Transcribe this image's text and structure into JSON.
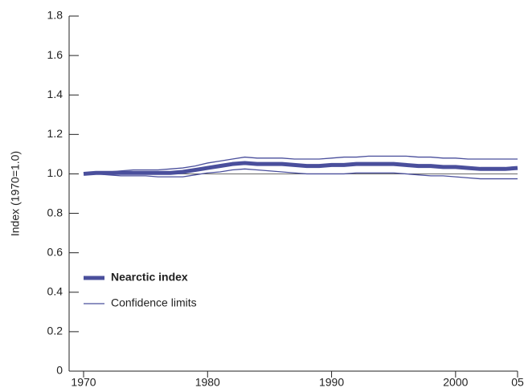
{
  "chart_data": {
    "type": "line",
    "y_label": "Index (1970=1.0)",
    "x": [
      1970,
      1971,
      1972,
      1973,
      1974,
      1975,
      1976,
      1977,
      1978,
      1979,
      1980,
      1981,
      1982,
      1983,
      1984,
      1985,
      1986,
      1987,
      1988,
      1989,
      1990,
      1991,
      1992,
      1993,
      1994,
      1995,
      1996,
      1997,
      1998,
      1999,
      2000,
      2001,
      2002,
      2003,
      2004,
      2005
    ],
    "series": [
      {
        "name": "Nearctic index",
        "color": "#4a4f9c",
        "values": [
          1.0,
          1.005,
          1.005,
          1.005,
          1.005,
          1.005,
          1.005,
          1.005,
          1.01,
          1.02,
          1.03,
          1.04,
          1.05,
          1.055,
          1.05,
          1.05,
          1.05,
          1.045,
          1.04,
          1.04,
          1.045,
          1.045,
          1.05,
          1.05,
          1.05,
          1.05,
          1.045,
          1.04,
          1.04,
          1.035,
          1.035,
          1.03,
          1.025,
          1.025,
          1.025,
          1.03
        ]
      },
      {
        "name": "Confidence limits",
        "color": "#4a4f9c",
        "upper": [
          1.0,
          1.01,
          1.01,
          1.015,
          1.02,
          1.02,
          1.02,
          1.025,
          1.03,
          1.04,
          1.055,
          1.065,
          1.075,
          1.085,
          1.08,
          1.08,
          1.08,
          1.075,
          1.075,
          1.075,
          1.08,
          1.085,
          1.085,
          1.09,
          1.09,
          1.09,
          1.09,
          1.085,
          1.085,
          1.08,
          1.08,
          1.075,
          1.075,
          1.075,
          1.075,
          1.075
        ],
        "lower": [
          1.0,
          1.0,
          0.995,
          0.99,
          0.99,
          0.99,
          0.985,
          0.985,
          0.985,
          0.995,
          1.005,
          1.01,
          1.02,
          1.025,
          1.02,
          1.015,
          1.01,
          1.005,
          1.0,
          1.0,
          1.0,
          1.0,
          1.005,
          1.005,
          1.005,
          1.005,
          1.0,
          0.995,
          0.99,
          0.99,
          0.985,
          0.98,
          0.975,
          0.975,
          0.975,
          0.975
        ]
      }
    ],
    "reference_line": 1,
    "xlim": [
      1970,
      2005
    ],
    "xticks": [
      1970,
      1980,
      1990,
      2000,
      {
        "value": 2005,
        "label": "05"
      }
    ],
    "ylim": [
      0,
      1.8
    ],
    "yticks": [
      0,
      0.2,
      0.4,
      0.6,
      {
        "value": 0.8,
        "label": "0.8"
      },
      {
        "value": 1,
        "label": "1.0"
      },
      1.2,
      1.4,
      1.6,
      1.8
    ],
    "grid": false,
    "legend": "lower-left"
  }
}
